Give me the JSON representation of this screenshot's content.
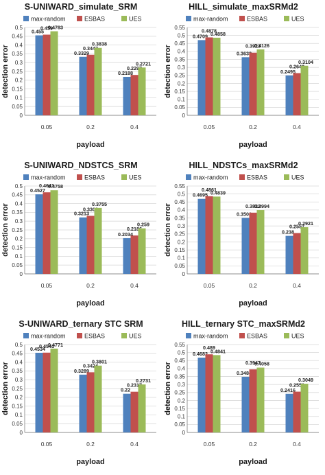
{
  "chart_data": [
    {
      "type": "bar",
      "title": "S-UNIWARD_simulate_SRM",
      "xlabel": "payload",
      "ylabel": "detection error",
      "categories": [
        "0.05",
        "0.2",
        "0.4"
      ],
      "series": [
        {
          "name": "max-random",
          "values": [
            0.455,
            0.3329,
            0.2188
          ]
        },
        {
          "name": "ESBAS",
          "values": [
            0.459,
            0.3447,
            0.2297
          ]
        },
        {
          "name": "UES",
          "values": [
            0.4783,
            0.3838,
            0.2721
          ]
        }
      ],
      "labels": [
        [
          "0.455",
          "0.459",
          "0.4783"
        ],
        [
          "0.3329",
          "0.3447",
          "0.3838"
        ],
        [
          "0.2188",
          "0.2297",
          "0.2721"
        ]
      ],
      "ylim": [
        0,
        0.5
      ],
      "yticks": [
        "0",
        "0.05",
        "0.1",
        "0.15",
        "0.2",
        "0.25",
        "0.3",
        "0.35",
        "0.4",
        "0.45",
        "0.5"
      ],
      "grid": true,
      "legend": "top"
    },
    {
      "type": "bar",
      "title": "HILL_simulate_maxSRMd2",
      "xlabel": "payload",
      "ylabel": "detection error",
      "categories": [
        "0.05",
        "0.2",
        "0.4"
      ],
      "series": [
        {
          "name": "max-random",
          "values": [
            0.4709,
            0.3638,
            0.2495
          ]
        },
        {
          "name": "ESBAS",
          "values": [
            0.4878,
            0.3923,
            0.2642
          ]
        },
        {
          "name": "UES",
          "values": [
            0.4858,
            0.4126,
            0.3104
          ]
        }
      ],
      "labels": [
        [
          "0.4709",
          "0.4878",
          "0.4858"
        ],
        [
          "0.3638",
          "0.3923",
          "0.4126"
        ],
        [
          "0.2495",
          "0.2642",
          "0.3104"
        ]
      ],
      "ylim": [
        0,
        0.55
      ],
      "yticks": [
        "0",
        "0.05",
        "0.1",
        "0.15",
        "0.2",
        "0.25",
        "0.3",
        "0.35",
        "0.4",
        "0.45",
        "0.5",
        "0.55"
      ],
      "grid": true,
      "legend": "top"
    },
    {
      "type": "bar",
      "title": "S-UNIWARD_NDSTCS_SRM",
      "xlabel": "payload",
      "ylabel": "detection error",
      "categories": [
        "0.05",
        "0.2",
        "0.4"
      ],
      "series": [
        {
          "name": "max-random",
          "values": [
            0.4527,
            0.3213,
            0.2034
          ]
        },
        {
          "name": "ESBAS",
          "values": [
            0.4641,
            0.3303,
            0.2186
          ]
        },
        {
          "name": "UES",
          "values": [
            0.4758,
            0.3755,
            0.259
          ]
        }
      ],
      "labels": [
        [
          "0.4527",
          "0.4641",
          "0.4758"
        ],
        [
          "0.3213",
          "0.3303",
          "0.3755"
        ],
        [
          "0.2034",
          "0.2186",
          "0.259"
        ]
      ],
      "ylim": [
        0,
        0.5
      ],
      "yticks": [
        "0",
        "0.05",
        "0.1",
        "0.15",
        "0.2",
        "0.25",
        "0.3",
        "0.35",
        "0.4",
        "0.45",
        "0.5"
      ],
      "grid": true,
      "legend": "top"
    },
    {
      "type": "bar",
      "title": "HILL_NDSTCs_maxSRMd2",
      "xlabel": "payload",
      "ylabel": "detection error",
      "categories": [
        "0.05",
        "0.2",
        "0.4"
      ],
      "series": [
        {
          "name": "max-random",
          "values": [
            0.4695,
            0.3508,
            0.238
          ]
        },
        {
          "name": "ESBAS",
          "values": [
            0.4861,
            0.3832,
            0.2557
          ]
        },
        {
          "name": "UES",
          "values": [
            0.4839,
            0.3994,
            0.2921
          ]
        }
      ],
      "labels": [
        [
          "0.4695",
          "0.4861",
          "0.4839"
        ],
        [
          "0.3508",
          "0.3832",
          "0.3994"
        ],
        [
          "0.238",
          "0.2557",
          "0.2921"
        ]
      ],
      "ylim": [
        0,
        0.55
      ],
      "yticks": [
        "0",
        "0.05",
        "0.1",
        "0.15",
        "0.2",
        "0.25",
        "0.3",
        "0.35",
        "0.4",
        "0.45",
        "0.5",
        "0.55"
      ],
      "grid": true,
      "legend": "top"
    },
    {
      "type": "bar",
      "title": "S-UNIWARD_ternary STC SRM",
      "xlabel": "payload",
      "ylabel": "detection error",
      "categories": [
        "0.05",
        "0.2",
        "0.4"
      ],
      "series": [
        {
          "name": "max-random",
          "values": [
            0.4534,
            0.3289,
            0.22
          ]
        },
        {
          "name": "ESBAS",
          "values": [
            0.4541,
            0.3424,
            0.2317
          ]
        },
        {
          "name": "UES",
          "values": [
            0.4771,
            0.3801,
            0.2731
          ]
        }
      ],
      "labels": [
        [
          "0.4534",
          "0.4541",
          "0.4771"
        ],
        [
          "0.3289",
          "0.3424",
          "0.3801"
        ],
        [
          "0.22",
          "0.2317",
          "0.2731"
        ]
      ],
      "ylim": [
        0,
        0.5
      ],
      "yticks": [
        "0",
        "0.05",
        "0.1",
        "0.15",
        "0.2",
        "0.25",
        "0.3",
        "0.35",
        "0.4",
        "0.45",
        "0.5"
      ],
      "grid": true,
      "legend": "top"
    },
    {
      "type": "bar",
      "title": "HILL_ternary STC_maxSRMd2",
      "xlabel": "payload",
      "ylabel": "detection error",
      "categories": [
        "0.05",
        "0.2",
        "0.4"
      ],
      "series": [
        {
          "name": "max-random",
          "values": [
            0.4682,
            0.3484,
            0.2416
          ]
        },
        {
          "name": "ESBAS",
          "values": [
            0.489,
            0.3947,
            0.2553
          ]
        },
        {
          "name": "UES",
          "values": [
            0.4841,
            0.4058,
            0.3049
          ]
        }
      ],
      "labels": [
        [
          "0.4682",
          "0.489",
          "0.4841"
        ],
        [
          "0.3484",
          "0.3947",
          "0.4058"
        ],
        [
          "0.2416",
          "0.2553",
          "0.3049"
        ]
      ],
      "ylim": [
        0,
        0.55
      ],
      "yticks": [
        "0",
        "0.05",
        "0.1",
        "0.15",
        "0.2",
        "0.25",
        "0.3",
        "0.35",
        "0.4",
        "0.45",
        "0.5",
        "0.55"
      ],
      "grid": true,
      "legend": "top"
    }
  ],
  "colors": {
    "max-random": "#4f81bd",
    "ESBAS": "#c0504d",
    "UES": "#9bbb59",
    "grid": "#d9d9d9",
    "axis": "#8c8c8c"
  }
}
